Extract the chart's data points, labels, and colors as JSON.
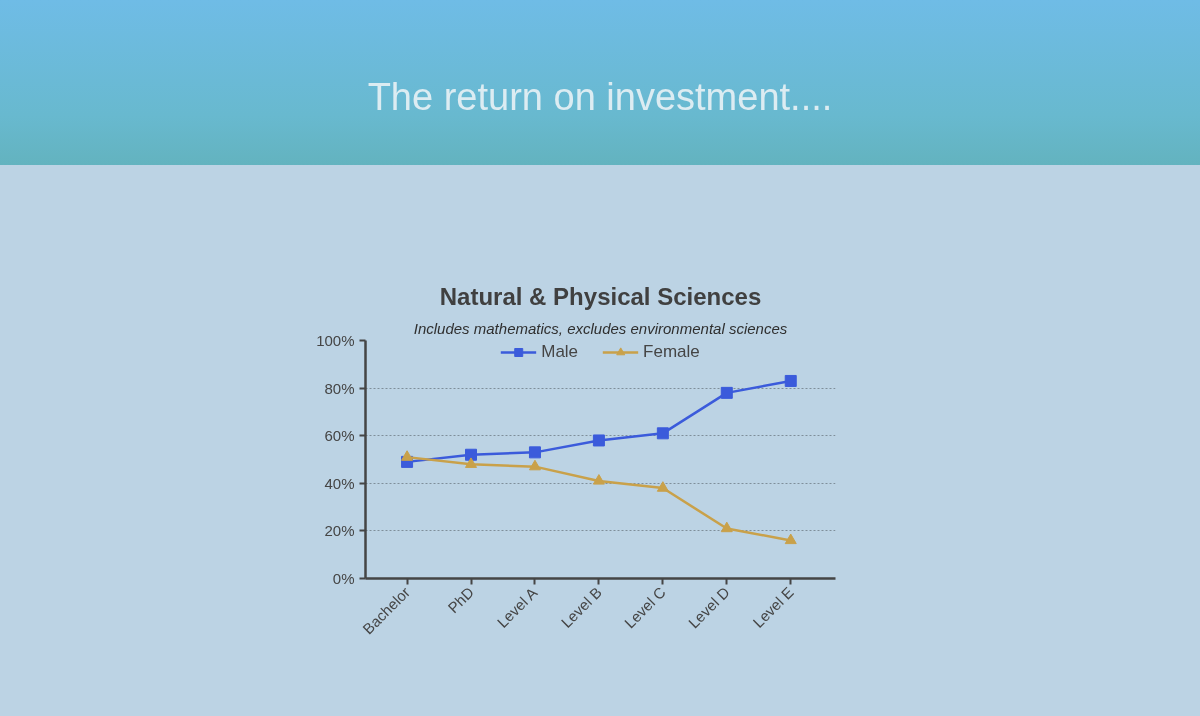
{
  "chart_data": {
    "type": "line",
    "title": "Natural & Physical Sciences",
    "subtitle": "Includes mathematics, excludes environmental sciences",
    "annotations": [
      "The return on investment...."
    ],
    "categories": [
      "Bachelor",
      "PhD",
      "Level A",
      "Level B",
      "Level C",
      "Level D",
      "Level E"
    ],
    "series": [
      {
        "name": "Male",
        "color": "#3b5bdb",
        "marker": "square",
        "values": [
          49,
          52,
          53,
          58,
          61,
          78,
          83
        ]
      },
      {
        "name": "Female",
        "color": "#c9a14a",
        "marker": "triangle",
        "values": [
          51,
          48,
          47,
          41,
          38,
          21,
          16
        ]
      }
    ],
    "ylim": [
      0,
      100
    ],
    "yticks": [
      {
        "value": 0,
        "label": "0%"
      },
      {
        "value": 20,
        "label": "20%"
      },
      {
        "value": 40,
        "label": "40%"
      },
      {
        "value": 60,
        "label": "60%"
      },
      {
        "value": 80,
        "label": "80%"
      },
      {
        "value": 100,
        "label": "100%"
      }
    ],
    "grid": "y",
    "legend": "top",
    "line_style": "solid"
  }
}
